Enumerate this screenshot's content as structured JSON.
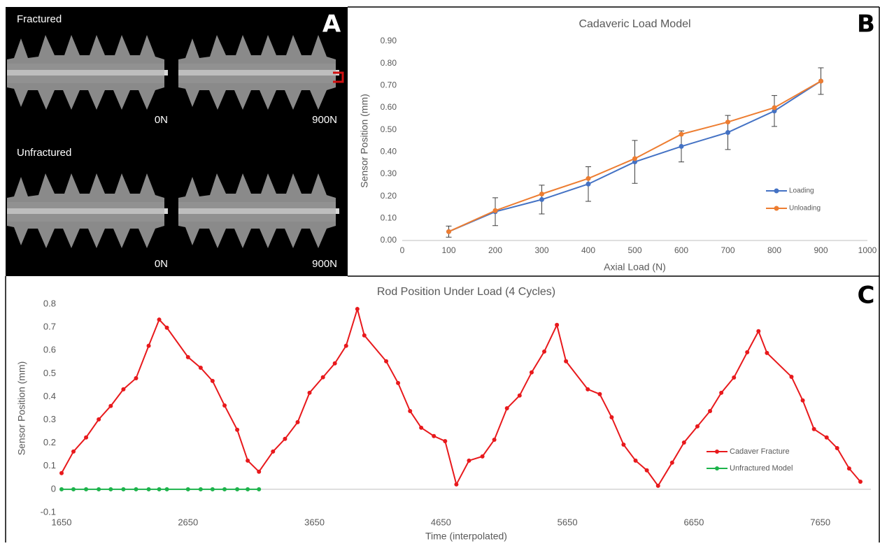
{
  "figure": {
    "panel_labels": [
      "A",
      "B",
      "C"
    ],
    "panel_a": {
      "rows": [
        {
          "label": "Fractured",
          "loads": [
            "0N",
            "900N"
          ]
        },
        {
          "label": "Unfractured",
          "loads": [
            "0N",
            "900N"
          ]
        }
      ]
    }
  },
  "chart_data": [
    {
      "type": "line",
      "title": "Cadaveric Load Model",
      "x_label": "Axial Load (N)",
      "y_label": "Sensor Position (mm)",
      "x": [
        100,
        200,
        300,
        400,
        500,
        600,
        700,
        800,
        900
      ],
      "xlim": [
        0,
        1000
      ],
      "xticks": [
        0,
        100,
        200,
        300,
        400,
        500,
        600,
        700,
        800,
        900,
        1000
      ],
      "ylim": [
        0,
        0.9
      ],
      "yticks": [
        {
          "value": 0,
          "label": "0.00"
        },
        {
          "value": 0.1,
          "label": "0.10"
        },
        {
          "value": 0.2,
          "label": "0.20"
        },
        {
          "value": 0.3,
          "label": "0.30"
        },
        {
          "value": 0.4,
          "label": "0.40"
        },
        {
          "value": 0.5,
          "label": "0.50"
        },
        {
          "value": 0.6,
          "label": "0.60"
        },
        {
          "value": 0.7,
          "label": "0.70"
        },
        {
          "value": 0.8,
          "label": "0.80"
        },
        {
          "value": 0.9,
          "label": "0.90"
        }
      ],
      "legend": "right",
      "grid": false,
      "series": [
        {
          "name": "Loading",
          "color": "#4472c4",
          "values": [
            0.04,
            0.13,
            0.185,
            0.255,
            0.355,
            0.425,
            0.488,
            0.585,
            0.72
          ],
          "errors": [
            0.025,
            0.063,
            0.065,
            0.078,
            0.097,
            0.07,
            0.077,
            0.07,
            0.06
          ]
        },
        {
          "name": "Unloading",
          "color": "#ed7d31",
          "values": [
            0.04,
            0.135,
            0.21,
            0.28,
            0.37,
            0.48,
            0.535,
            0.6,
            0.72
          ]
        }
      ]
    },
    {
      "type": "line",
      "title": "Rod Position Under Load (4 Cycles)",
      "x_label": "Time (interpolated)",
      "y_label": "Sensor Position (mm)",
      "xlim": [
        1650,
        8050
      ],
      "xticks": [
        1650,
        2650,
        3650,
        4650,
        5650,
        6650,
        7650
      ],
      "ylim": [
        -0.1,
        0.8
      ],
      "yticks": [
        -0.1,
        0,
        0.1,
        0.2,
        0.3,
        0.4,
        0.5,
        0.6,
        0.7,
        0.8
      ],
      "legend": "right",
      "grid": false,
      "series": [
        {
          "name": "Cadaver Fracture",
          "color": "#e8191c",
          "x": [
            1650,
            1744,
            1844,
            1944,
            2039,
            2139,
            2239,
            2339,
            2422,
            2483,
            2650,
            2750,
            2844,
            2939,
            3039,
            3122,
            3211,
            3322,
            3417,
            3517,
            3611,
            3717,
            3811,
            3900,
            3989,
            4044,
            4217,
            4311,
            4406,
            4494,
            4594,
            4683,
            4772,
            4872,
            4978,
            5072,
            5172,
            5272,
            5367,
            5467,
            5567,
            5639,
            5811,
            5906,
            6000,
            6094,
            6189,
            6278,
            6367,
            6478,
            6572,
            6678,
            6778,
            6867,
            6967,
            7072,
            7161,
            7228,
            7422,
            7511,
            7600,
            7700,
            7783,
            7878,
            7967
          ],
          "values": [
            0.07,
            0.163,
            0.224,
            0.302,
            0.36,
            0.432,
            0.48,
            0.62,
            0.733,
            0.698,
            0.571,
            0.525,
            0.468,
            0.362,
            0.257,
            0.124,
            0.076,
            0.163,
            0.218,
            0.29,
            0.417,
            0.484,
            0.544,
            0.62,
            0.779,
            0.665,
            0.553,
            0.459,
            0.338,
            0.266,
            0.23,
            0.208,
            0.021,
            0.124,
            0.142,
            0.214,
            0.35,
            0.405,
            0.505,
            0.595,
            0.71,
            0.553,
            0.432,
            0.411,
            0.311,
            0.193,
            0.124,
            0.082,
            0.015,
            0.115,
            0.202,
            0.272,
            0.338,
            0.417,
            0.483,
            0.592,
            0.683,
            0.589,
            0.486,
            0.384,
            0.26,
            0.224,
            0.178,
            0.09,
            0.033
          ]
        },
        {
          "name": "Unfractured Model",
          "color": "#1db34b",
          "x": [
            1650,
            1744,
            1844,
            1944,
            2039,
            2139,
            2239,
            2339,
            2422,
            2483,
            2650,
            2750,
            2844,
            2939,
            3039,
            3122,
            3211
          ],
          "values": [
            0,
            0,
            0,
            0,
            0,
            0,
            0,
            0,
            0,
            0,
            0,
            0,
            0,
            0,
            0,
            0,
            0
          ]
        }
      ]
    }
  ]
}
